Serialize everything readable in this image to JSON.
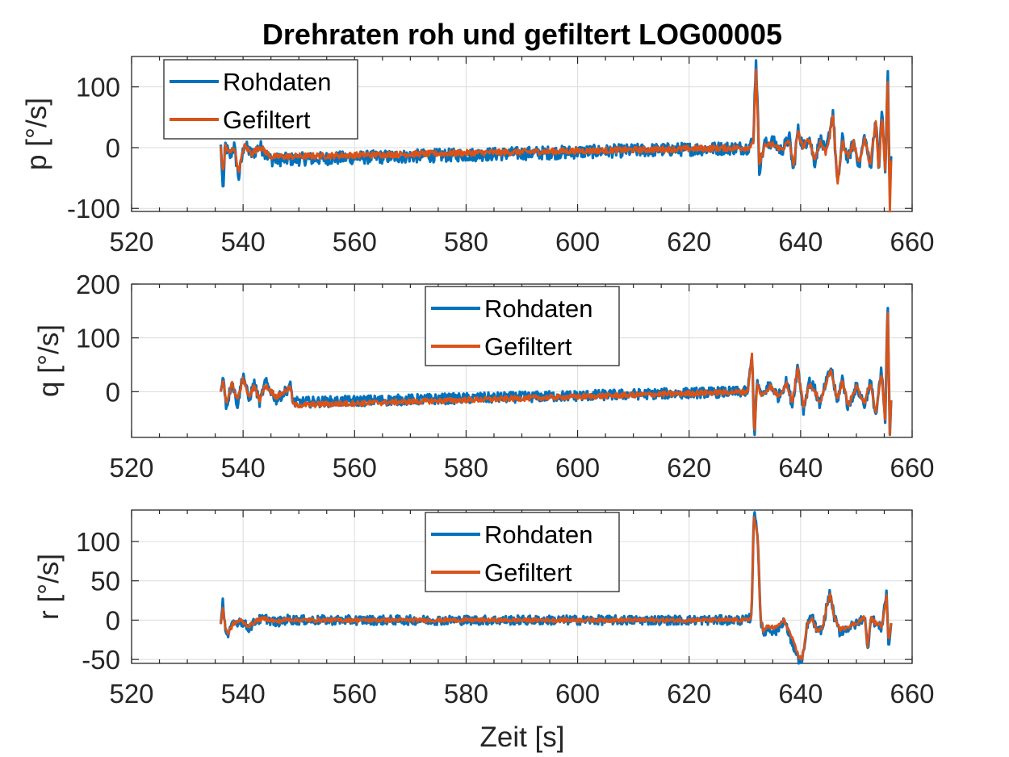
{
  "title": "Drehraten roh und gefiltert LOG00005",
  "xlabel": "Zeit [s]",
  "colors": {
    "raw": "#0072BD",
    "filtered": "#D95319",
    "axis": "#262626",
    "grid": "#dcdcdc"
  },
  "chart_data": [
    {
      "type": "line",
      "ylabel": "p [°/s]",
      "xlim": [
        520,
        660
      ],
      "ylim": [
        -105,
        150
      ],
      "xticks": [
        520,
        540,
        560,
        580,
        600,
        620,
        640,
        660
      ],
      "yticks": [
        -100,
        0,
        100
      ],
      "ytick_labels": [
        "-100",
        "0",
        "100"
      ],
      "xtick_labels": [
        "520",
        "540",
        "560",
        "580",
        "600",
        "620",
        "640",
        "660"
      ],
      "grid": true,
      "legend": "top-left",
      "series": [
        {
          "name": "Rohdaten",
          "color": "#0072BD",
          "noise": 11,
          "x": [
            536,
            536.4,
            536.8,
            537.6,
            538.4,
            539.2,
            540.2,
            541.6,
            543,
            545,
            630.5,
            631.5,
            632,
            632.6,
            633.5,
            635,
            636.5,
            638,
            638.7,
            639.5,
            640.5,
            641.5,
            642.5,
            643.5,
            644.5,
            645.2,
            645.8,
            646.6,
            647.5,
            648.5,
            649.5,
            650.5,
            651.5,
            652.5,
            653.5,
            654,
            654.6,
            655.2,
            655.6,
            656,
            656.3
          ],
          "y": [
            5,
            -75,
            5,
            -15,
            2,
            -50,
            5,
            -12,
            3,
            -20,
            0,
            10,
            148,
            -35,
            5,
            10,
            -5,
            15,
            -40,
            30,
            0,
            20,
            -25,
            15,
            -10,
            25,
            60,
            -65,
            15,
            -20,
            10,
            -30,
            20,
            -35,
            50,
            -40,
            65,
            -50,
            137,
            -70,
            0
          ]
        },
        {
          "name": "Gefiltert",
          "color": "#D95319",
          "noise": 5,
          "x": [
            536,
            536.4,
            536.8,
            537.6,
            538.4,
            539.2,
            540.2,
            541.6,
            543,
            545,
            630.5,
            631.5,
            632,
            632.6,
            633.5,
            635,
            636.5,
            638,
            638.7,
            639.5,
            640.5,
            641.5,
            642.5,
            643.5,
            644.5,
            645.2,
            645.8,
            646.6,
            647.5,
            648.5,
            649.5,
            650.5,
            651.5,
            652.5,
            653.5,
            654,
            654.6,
            655.2,
            655.6,
            656,
            656.3
          ],
          "y": [
            3,
            -45,
            3,
            -10,
            2,
            -40,
            3,
            -10,
            2,
            -15,
            0,
            5,
            130,
            -30,
            3,
            5,
            -3,
            10,
            -30,
            25,
            0,
            15,
            -20,
            10,
            -8,
            20,
            55,
            -60,
            10,
            -15,
            8,
            -25,
            15,
            -30,
            45,
            -40,
            55,
            -45,
            130,
            -105,
            0
          ]
        }
      ]
    },
    {
      "type": "line",
      "ylabel": "q [°/s]",
      "xlim": [
        520,
        660
      ],
      "ylim": [
        -85,
        200
      ],
      "xticks": [
        520,
        540,
        560,
        580,
        600,
        620,
        640,
        660
      ],
      "yticks": [
        0,
        100,
        200
      ],
      "ytick_labels": [
        "0",
        "100",
        "200"
      ],
      "xtick_labels": [
        "520",
        "540",
        "560",
        "580",
        "600",
        "620",
        "640",
        "660"
      ],
      "grid": true,
      "legend": "top-center",
      "series": [
        {
          "name": "Rohdaten",
          "color": "#0072BD",
          "noise": 10,
          "x": [
            536,
            536.5,
            537,
            538,
            539,
            540,
            541,
            542,
            543,
            544,
            546,
            548.5,
            549,
            630.5,
            631.3,
            631.7,
            632.2,
            633,
            634.5,
            636,
            637.5,
            638.5,
            639.5,
            640.5,
            641.5,
            642.5,
            643.5,
            644.5,
            645.5,
            646.5,
            647.5,
            648.5,
            650,
            651.5,
            652.5,
            653.5,
            654.5,
            655.2,
            655.6,
            656,
            656.3
          ],
          "y": [
            0,
            28,
            -30,
            20,
            -25,
            35,
            -15,
            15,
            -20,
            18,
            -15,
            10,
            -20,
            0,
            68,
            -85,
            20,
            -10,
            15,
            -10,
            20,
            -25,
            50,
            -35,
            20,
            5,
            -25,
            15,
            45,
            -20,
            25,
            -30,
            10,
            -25,
            20,
            -45,
            40,
            -60,
            175,
            -80,
            0
          ]
        },
        {
          "name": "Gefiltert",
          "color": "#D95319",
          "noise": 5,
          "x": [
            536,
            536.5,
            537,
            538,
            539,
            540,
            541,
            542,
            543,
            544,
            546,
            548.5,
            549,
            630.5,
            631.3,
            631.7,
            632.2,
            633,
            634.5,
            636,
            637.5,
            638.5,
            639.5,
            640.5,
            641.5,
            642.5,
            643.5,
            644.5,
            645.5,
            646.5,
            647.5,
            648.5,
            650,
            651.5,
            652.5,
            653.5,
            654.5,
            655.2,
            655.6,
            656,
            656.3
          ],
          "y": [
            0,
            20,
            -20,
            15,
            -15,
            25,
            -10,
            10,
            -15,
            12,
            -10,
            8,
            -25,
            0,
            70,
            -85,
            15,
            -8,
            10,
            -8,
            15,
            -20,
            45,
            -30,
            15,
            3,
            -20,
            12,
            40,
            -15,
            20,
            -25,
            8,
            -20,
            15,
            -40,
            35,
            -55,
            170,
            -80,
            0
          ]
        }
      ]
    },
    {
      "type": "line",
      "ylabel": "r [°/s]",
      "xlim": [
        520,
        660
      ],
      "ylim": [
        -55,
        140
      ],
      "xticks": [
        520,
        540,
        560,
        580,
        600,
        620,
        640,
        660
      ],
      "yticks": [
        -50,
        0,
        50,
        100
      ],
      "ytick_labels": [
        "-50",
        "0",
        "50",
        "100"
      ],
      "xtick_labels": [
        "520",
        "540",
        "560",
        "580",
        "600",
        "620",
        "640",
        "660"
      ],
      "grid": true,
      "legend": "top-center",
      "series": [
        {
          "name": "Rohdaten",
          "color": "#0072BD",
          "noise": 6,
          "x": [
            536,
            536.4,
            536.8,
            537.3,
            538.2,
            539.5,
            541,
            542.5,
            544,
            546,
            548,
            550,
            630.5,
            631.2,
            631.6,
            632.3,
            632.8,
            633.3,
            634,
            635.5,
            637,
            638,
            638.8,
            639.6,
            640.2,
            640.6,
            641.2,
            642,
            643,
            644,
            644.6,
            645.3,
            646,
            647,
            648.5,
            650,
            651.5,
            652,
            652.6,
            653.5,
            654.5,
            655.4,
            655.8,
            656.3
          ],
          "y": [
            -5,
            25,
            -10,
            -20,
            -5,
            0,
            -10,
            0,
            2,
            -3,
            1,
            0,
            0,
            5,
            138,
            110,
            5,
            -20,
            -10,
            -15,
            0,
            -20,
            -35,
            -50,
            -55,
            -40,
            -5,
            5,
            -15,
            -10,
            15,
            35,
            5,
            -15,
            -10,
            -5,
            5,
            -40,
            5,
            -5,
            -10,
            35,
            -35,
            0
          ]
        },
        {
          "name": "Gefiltert",
          "color": "#D95319",
          "noise": 2.5,
          "x": [
            536,
            536.4,
            536.8,
            537.3,
            538.2,
            539.5,
            541,
            542.5,
            544,
            546,
            548,
            550,
            630.5,
            631.2,
            631.6,
            632.3,
            632.8,
            633.3,
            634,
            635.5,
            637,
            638,
            638.8,
            639.6,
            640.2,
            640.6,
            641.2,
            642,
            643,
            644,
            644.6,
            645.3,
            646,
            647,
            648.5,
            650,
            651.5,
            652,
            652.6,
            653.5,
            654.5,
            655.4,
            655.8,
            656.3
          ],
          "y": [
            -5,
            15,
            -8,
            -18,
            -5,
            0,
            -8,
            0,
            2,
            -2,
            1,
            0,
            0,
            5,
            132,
            105,
            5,
            -15,
            -8,
            -10,
            0,
            -15,
            -30,
            -45,
            -50,
            -35,
            -5,
            3,
            -15,
            -8,
            15,
            33,
            5,
            -12,
            -8,
            -4,
            4,
            -35,
            3,
            -4,
            -8,
            30,
            -30,
            0
          ]
        }
      ]
    }
  ]
}
